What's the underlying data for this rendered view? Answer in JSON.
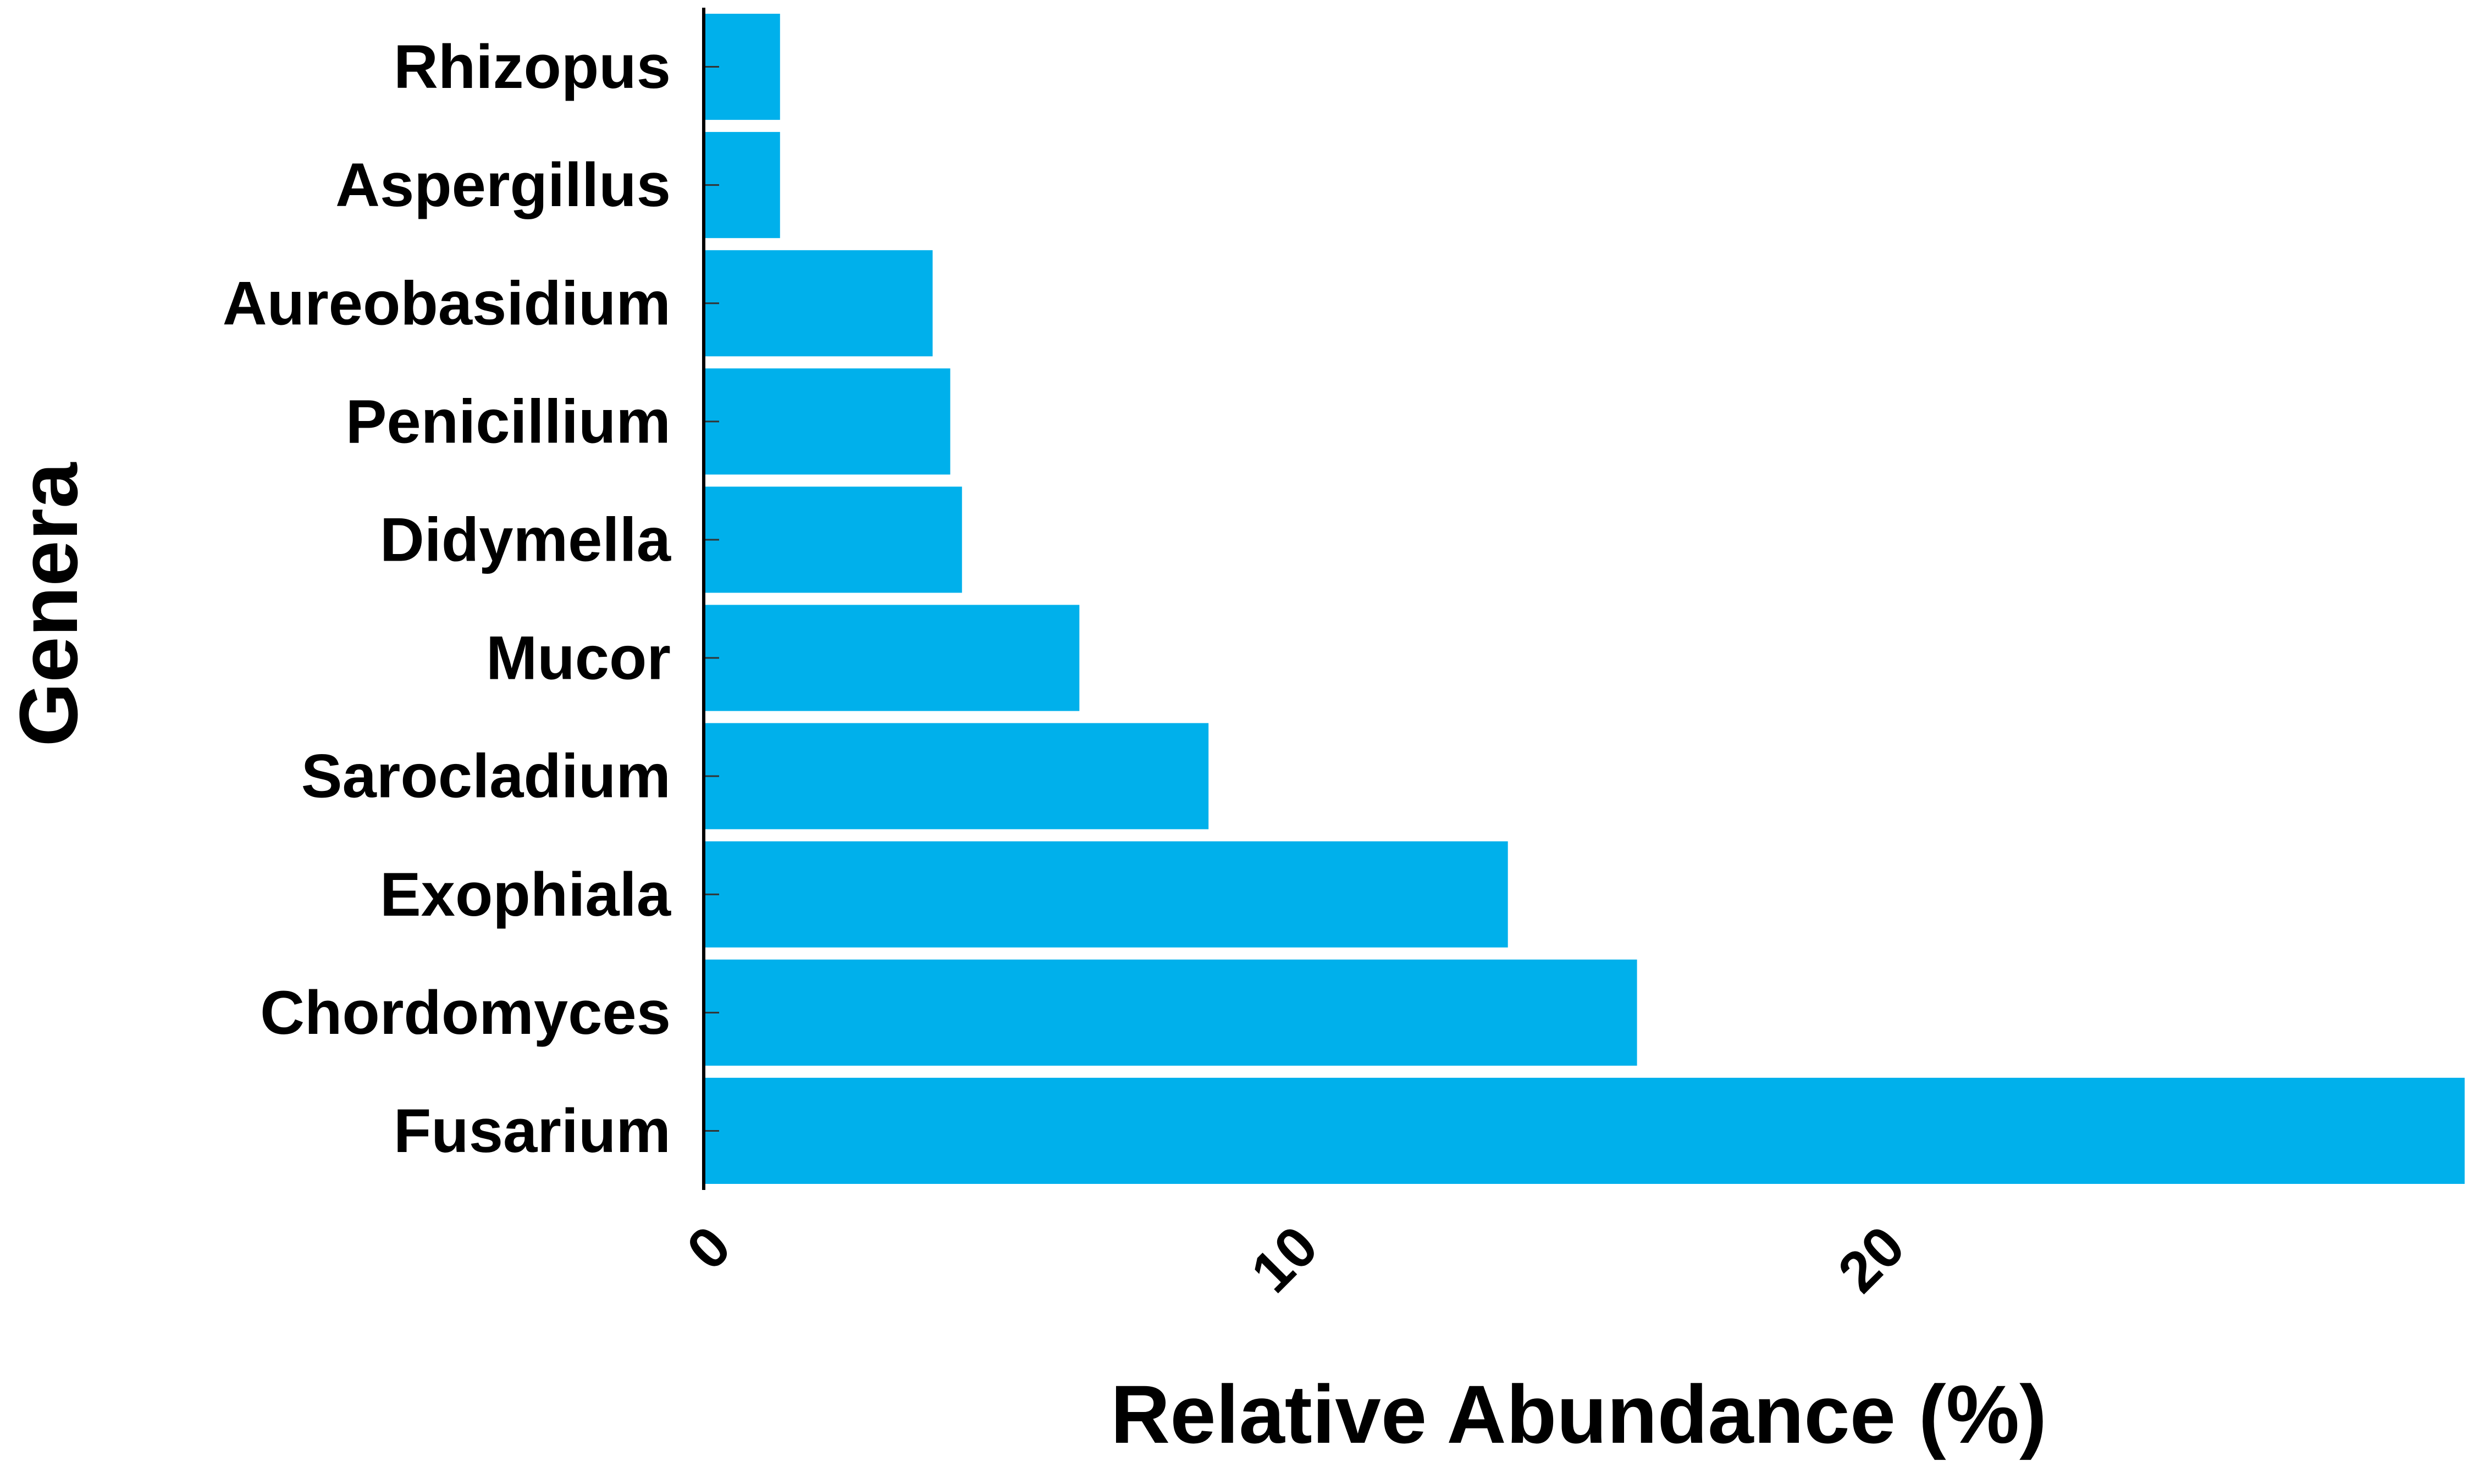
{
  "chart_data": {
    "type": "bar",
    "orientation": "horizontal",
    "title": "",
    "xlabel": "Relative Abundance (%)",
    "ylabel": "Genera",
    "categories": [
      "Rhizopus",
      "Aspergillus",
      "Aureobasidium",
      "Penicillium",
      "Didymella",
      "Mucor",
      "Sarocladium",
      "Exophiala",
      "Chordomyces",
      "Fusarium"
    ],
    "values": [
      1.3,
      1.3,
      3.9,
      4.2,
      4.4,
      6.4,
      8.6,
      13.7,
      15.9,
      30.0
    ],
    "xlim": [
      0,
      30
    ],
    "xticks": [
      "0",
      "10",
      "20"
    ],
    "grid": false,
    "legend": "none",
    "bar_color": "#00B0EB",
    "axis_color": "#000000"
  }
}
